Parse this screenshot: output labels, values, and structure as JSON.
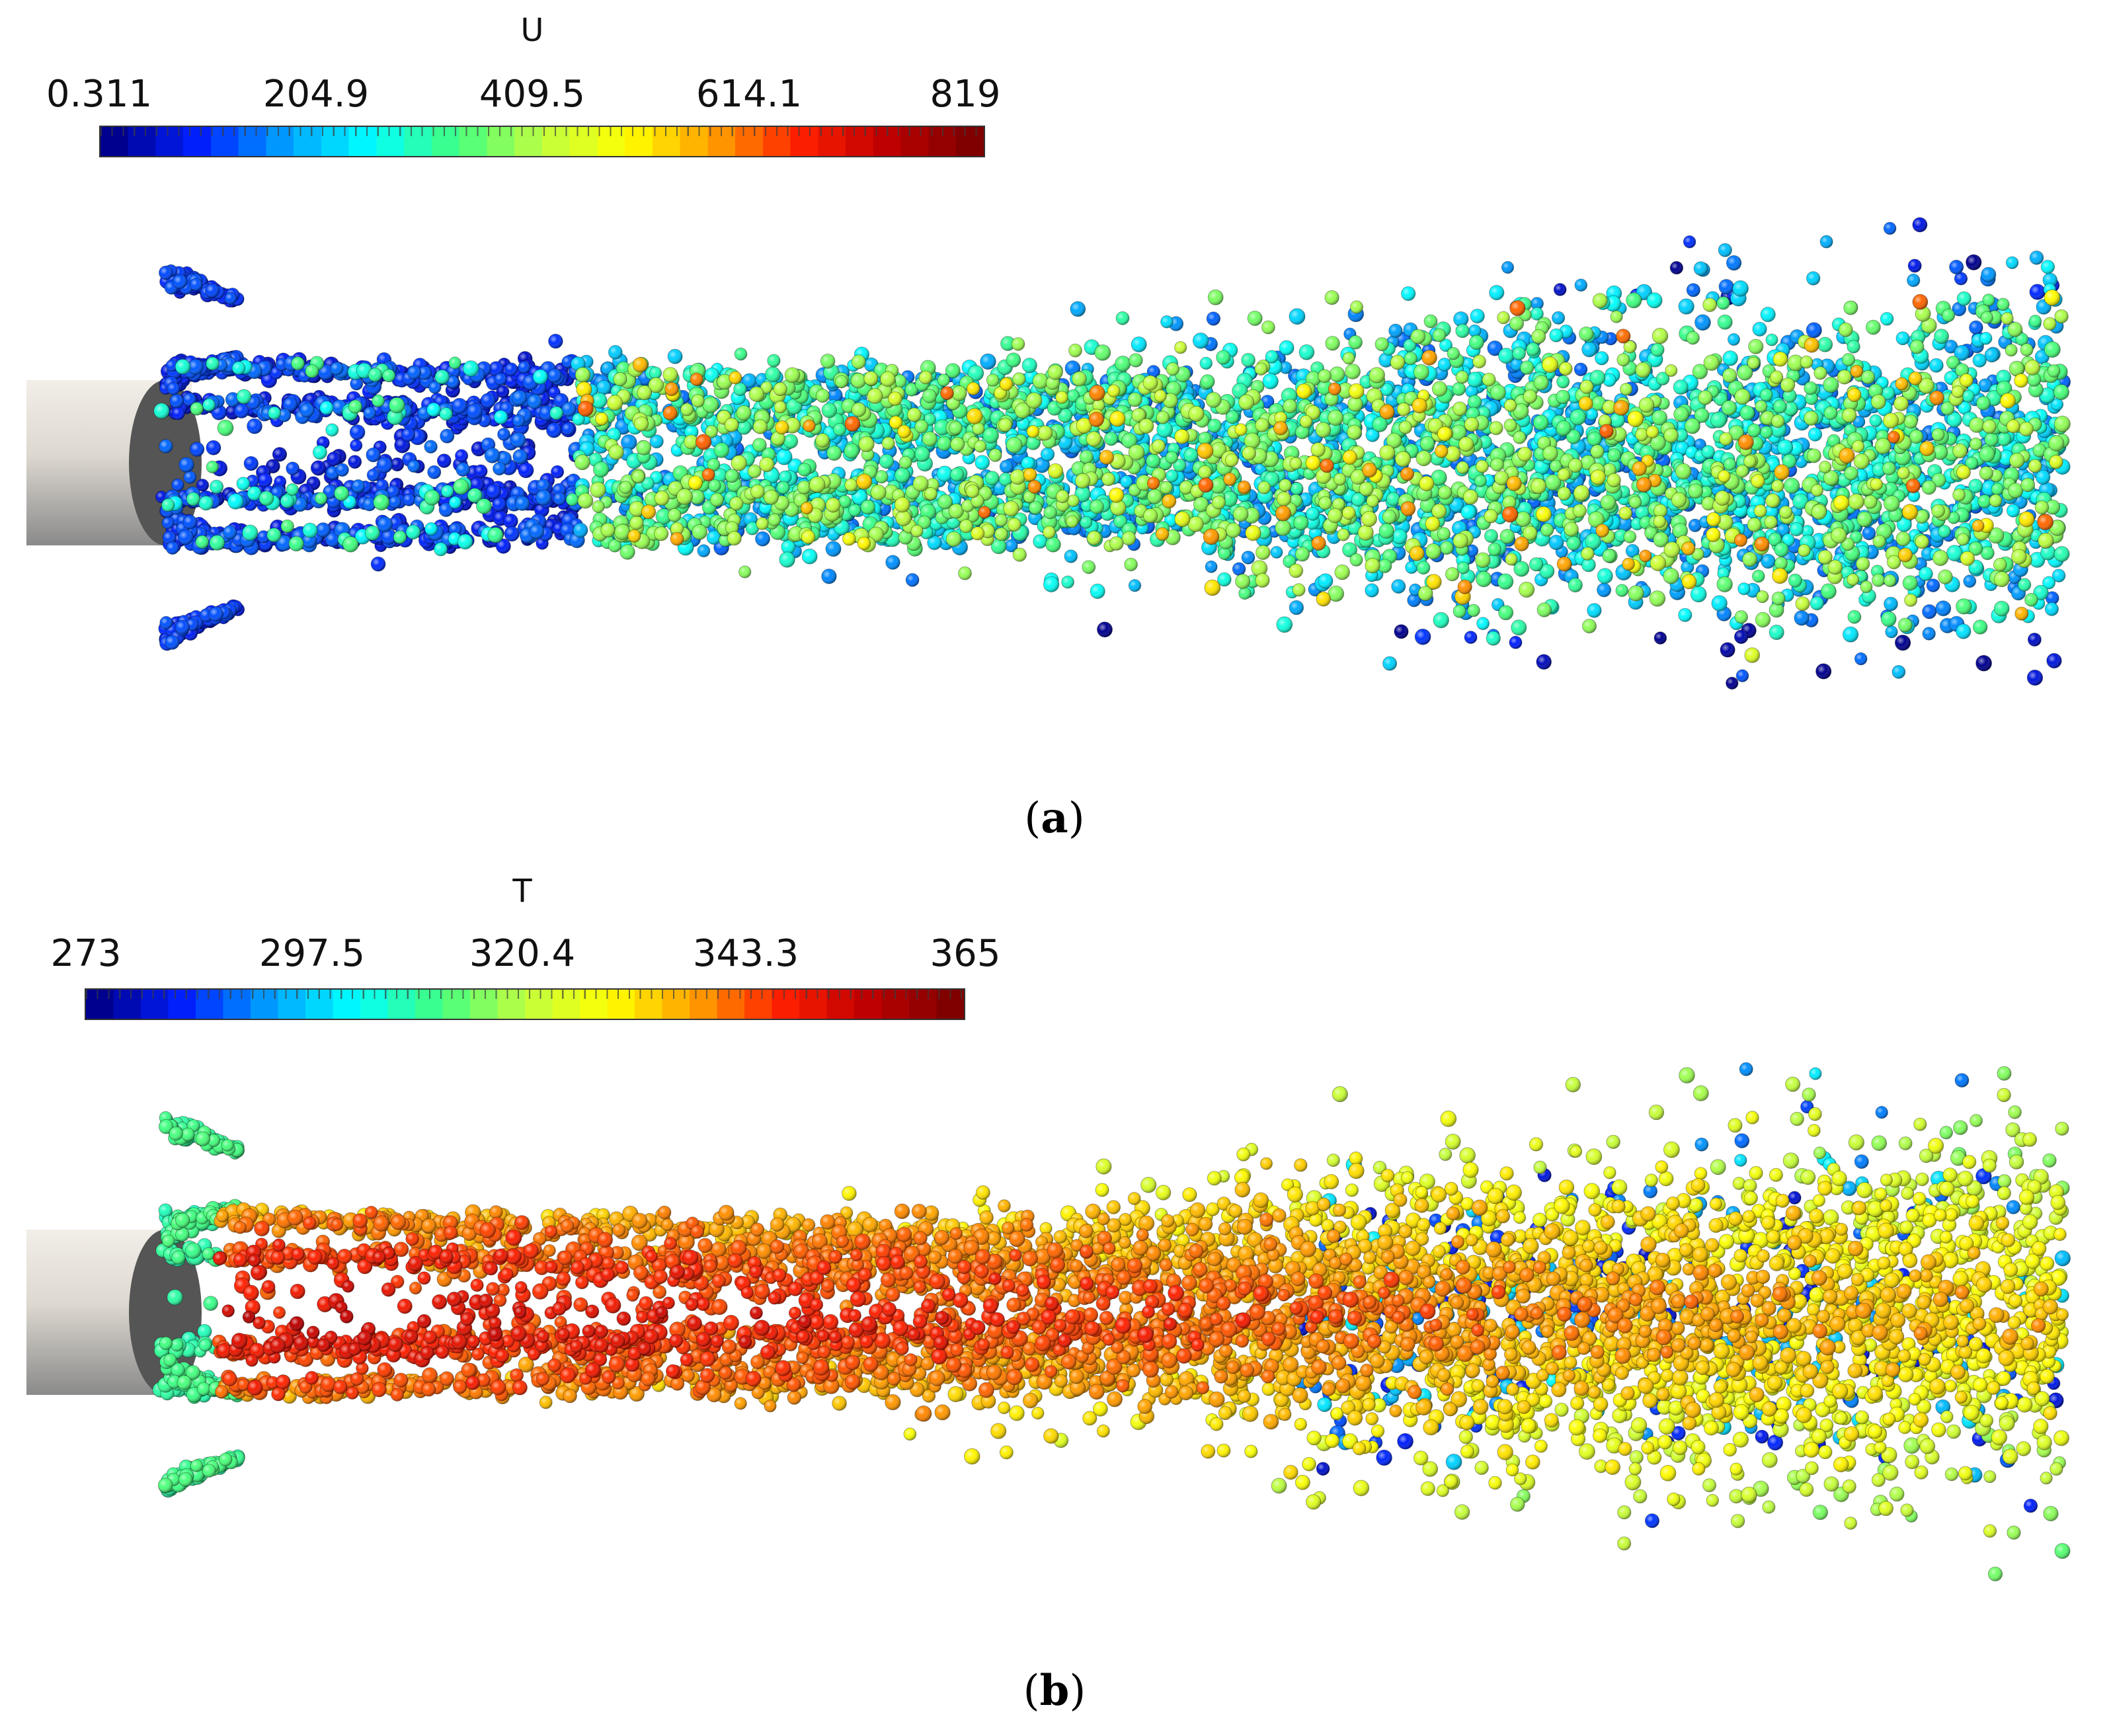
{
  "panel_a": {
    "colorbar": {
      "title": "U",
      "ticks": [
        "0.311",
        "204.9",
        "409.5",
        "614.1",
        "819"
      ],
      "range": [
        0.311,
        819
      ]
    },
    "caption_open": "(",
    "caption_letter": "a",
    "caption_close": ")",
    "seed": 17,
    "variable": "velocity"
  },
  "panel_b": {
    "colorbar": {
      "title": "T",
      "ticks": [
        "273",
        "297.5",
        "320.4",
        "343.3",
        "365"
      ],
      "range": [
        273,
        365
      ]
    },
    "caption_open": "(",
    "caption_letter": "b",
    "caption_close": ")",
    "seed": 91,
    "variable": "temperature"
  },
  "colormap": [
    "#00008f",
    "#0020ff",
    "#00a0ff",
    "#00ffff",
    "#40ff80",
    "#c0ff40",
    "#ffff00",
    "#ffa000",
    "#ff2000",
    "#c00000",
    "#800000"
  ],
  "nozzle_color": "#e8e4de",
  "nozzle_shade": "#555555"
}
